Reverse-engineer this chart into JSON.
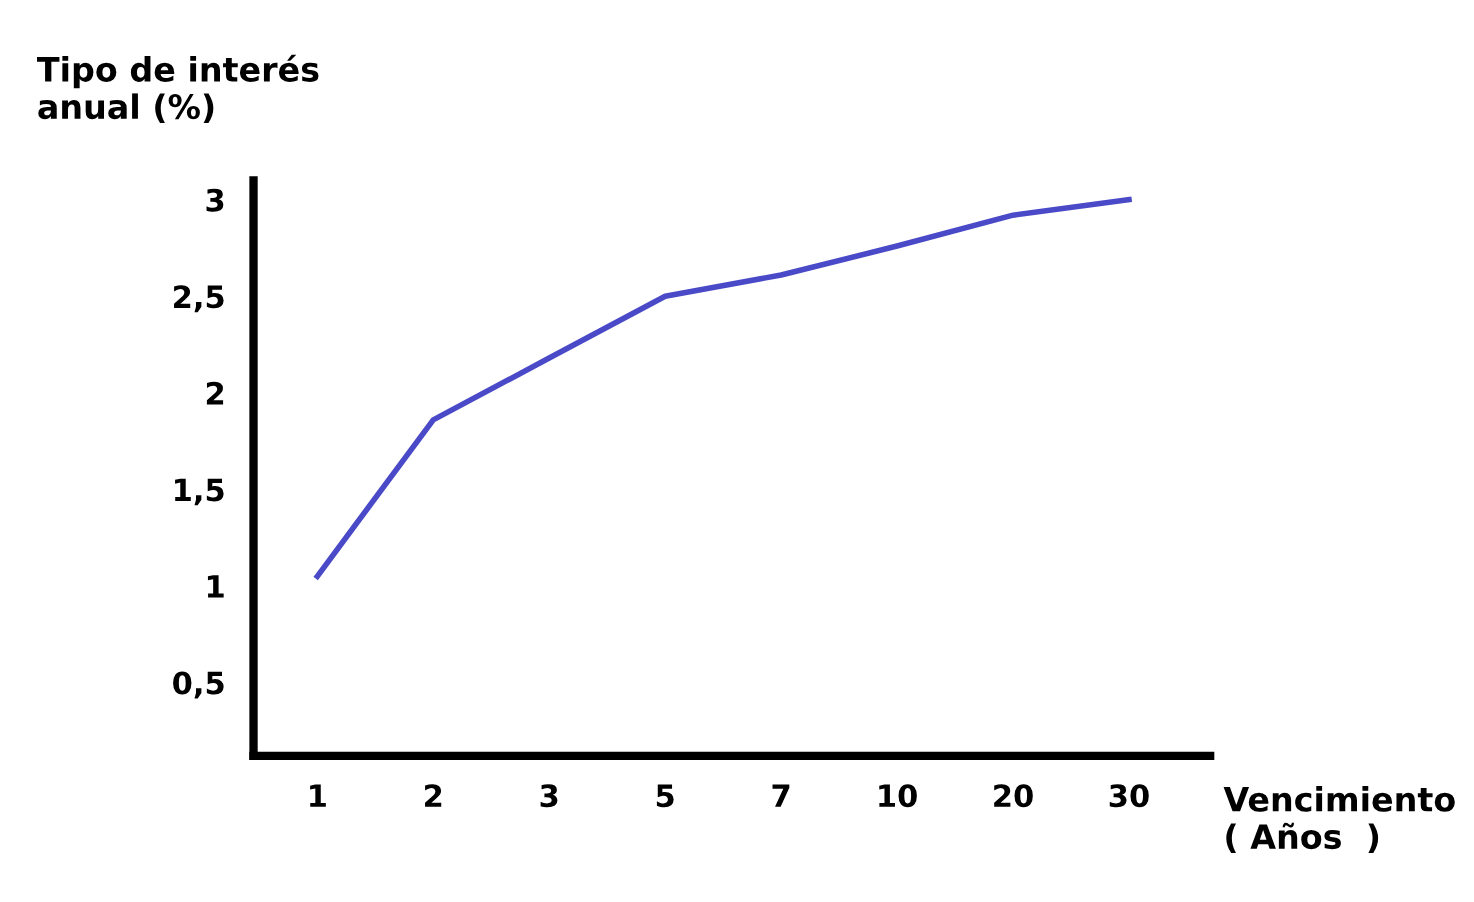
{
  "chart_data": {
    "type": "line",
    "xlabel": "Vencimiento\n( Años  )",
    "ylabel": "Tipo de interés\nanual (%)",
    "categories": [
      "1",
      "2",
      "3",
      "5",
      "7",
      "10",
      "20",
      "30"
    ],
    "series": [
      {
        "color": "#4a4ac8",
        "values": [
          1.05,
          1.86,
          2.18,
          2.5,
          2.61,
          2.76,
          2.92,
          3.0
        ]
      }
    ],
    "ylim": [
      0.12,
      3.1
    ],
    "yticks": [
      {
        "value": 0.5,
        "label": "0,5"
      },
      1,
      {
        "value": 1.5,
        "label": "1,5"
      },
      2,
      {
        "value": 2.5,
        "label": "2,5"
      },
      3
    ],
    "grid": false,
    "legend": false,
    "marker": "none",
    "line_style": "solid"
  }
}
